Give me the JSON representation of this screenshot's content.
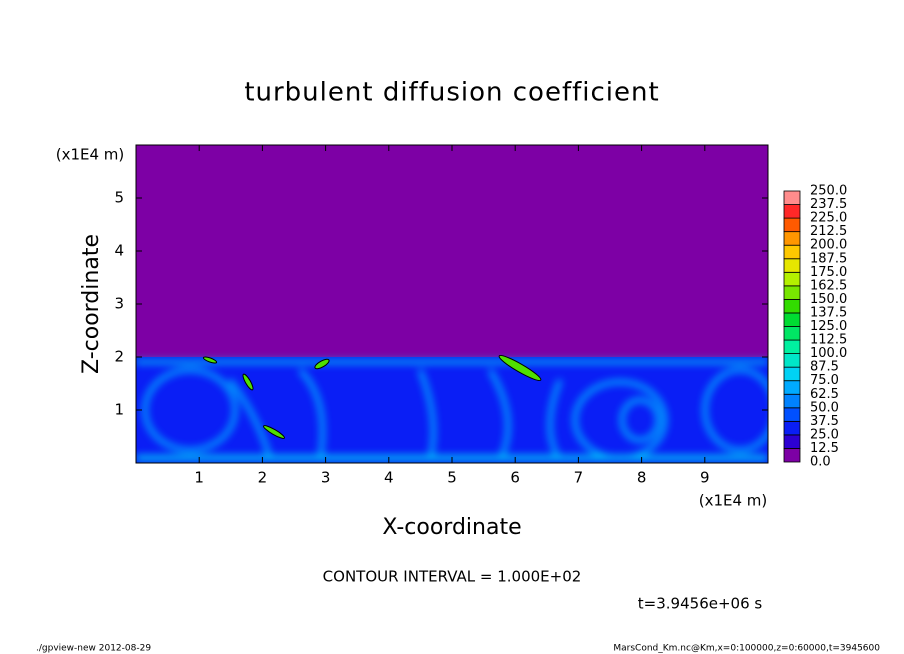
{
  "chart_data": {
    "type": "contour",
    "title": "turbulent diffusion coefficient",
    "xlabel": "X-coordinate",
    "ylabel": "Z-coordinate",
    "xunit_left": "(x1E4 m)",
    "xunit_right": "(x1E4 m)",
    "xlim": [
      0,
      10
    ],
    "xticks": [
      1,
      2,
      3,
      4,
      5,
      6,
      7,
      8,
      9
    ],
    "ylim": [
      0,
      6
    ],
    "yticks": [
      1,
      2,
      3,
      4,
      5
    ],
    "colorbar": {
      "levels": [
        {
          "value": 0,
          "label": "0.0"
        },
        {
          "value": 12.5,
          "label": "12.5"
        },
        {
          "value": 25,
          "label": "25.0"
        },
        {
          "value": 37.5,
          "label": "37.5"
        },
        {
          "value": 50,
          "label": "50.0"
        },
        {
          "value": 62.5,
          "label": "62.5"
        },
        {
          "value": 75,
          "label": "75.0"
        },
        {
          "value": 87.5,
          "label": "87.5"
        },
        {
          "value": 100,
          "label": "100.0"
        },
        {
          "value": 112.5,
          "label": "112.5"
        },
        {
          "value": 125,
          "label": "125.0"
        },
        {
          "value": 137.5,
          "label": "137.5"
        },
        {
          "value": 150,
          "label": "150.0"
        },
        {
          "value": 162.5,
          "label": "162.5"
        },
        {
          "value": 175,
          "label": "175.0"
        },
        {
          "value": 187.5,
          "label": "187.5"
        },
        {
          "value": 200,
          "label": "200.0"
        },
        {
          "value": 212.5,
          "label": "212.5"
        },
        {
          "value": 225,
          "label": "225.0"
        },
        {
          "value": 237.5,
          "label": "237.5"
        },
        {
          "value": 250,
          "label": "250.0"
        }
      ],
      "colors": [
        "#7d00a5",
        "#2d00d2",
        "#0a1ef5",
        "#0050ff",
        "#0082ff",
        "#00aaff",
        "#00d2f5",
        "#00e6c8",
        "#00f0a0",
        "#00e664",
        "#00dc32",
        "#32dc00",
        "#78e600",
        "#b4f000",
        "#e6e600",
        "#ffc800",
        "#ff9600",
        "#ff5a00",
        "#ff2828",
        "#ff8c8c"
      ]
    },
    "contour_interval": "CONTOUR INTERVAL = 1.000E+02",
    "time_label": "t=3.9456e+06 s",
    "footer_left": "./gpview-new  2012-08-29",
    "footer_right": "MarsCond_Km.nc@Km,x=0:100000,z=0:60000,t=3945600"
  }
}
